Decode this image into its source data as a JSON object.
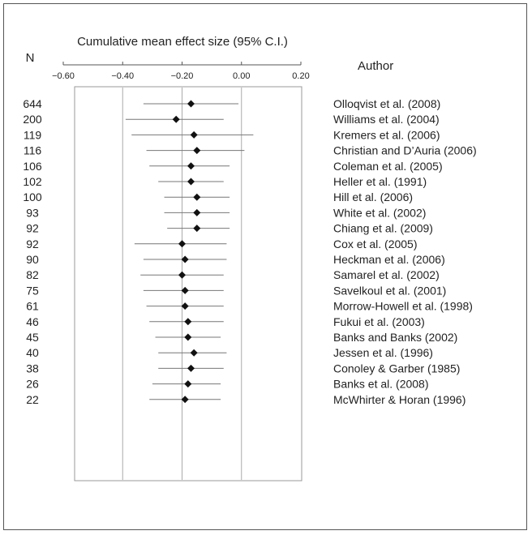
{
  "chart_data": {
    "type": "forest",
    "title": "Cumulative mean effect size (95% C.I.)",
    "n_header": "N",
    "author_header": "Author",
    "xlim": [
      -0.6,
      0.2
    ],
    "xticks": [
      -0.6,
      -0.4,
      -0.2,
      0.0,
      0.2
    ],
    "xtick_labels": [
      "−0.60",
      "−0.40",
      "−0.20",
      "0.00",
      "0.20"
    ],
    "gridlines_at": [
      -0.4,
      -0.2,
      0.0
    ],
    "rows": [
      {
        "n": "644",
        "author": "Olloqvist et al. (2008)",
        "mean": -0.17,
        "lower": -0.33,
        "upper": -0.01
      },
      {
        "n": "200",
        "author": "Williams et al. (2004)",
        "mean": -0.22,
        "lower": -0.39,
        "upper": -0.06
      },
      {
        "n": "119",
        "author": "Kremers et al. (2006)",
        "mean": -0.16,
        "lower": -0.37,
        "upper": 0.04
      },
      {
        "n": "116",
        "author": "Christian and D’Auria (2006)",
        "mean": -0.15,
        "lower": -0.32,
        "upper": 0.01
      },
      {
        "n": "106",
        "author": "Coleman et al. (2005)",
        "mean": -0.17,
        "lower": -0.31,
        "upper": -0.04
      },
      {
        "n": "102",
        "author": "Heller et al. (1991)",
        "mean": -0.17,
        "lower": -0.28,
        "upper": -0.06
      },
      {
        "n": "100",
        "author": "Hill et al. (2006)",
        "mean": -0.15,
        "lower": -0.26,
        "upper": -0.04
      },
      {
        "n": "93",
        "author": "White et al. (2002)",
        "mean": -0.15,
        "lower": -0.26,
        "upper": -0.04
      },
      {
        "n": "92",
        "author": "Chiang et al. (2009)",
        "mean": -0.15,
        "lower": -0.25,
        "upper": -0.04
      },
      {
        "n": "92",
        "author": "Cox et al. (2005)",
        "mean": -0.2,
        "lower": -0.36,
        "upper": -0.05
      },
      {
        "n": "90",
        "author": "Heckman et al. (2006)",
        "mean": -0.19,
        "lower": -0.33,
        "upper": -0.05
      },
      {
        "n": "82",
        "author": "Samarel et al. (2002)",
        "mean": -0.2,
        "lower": -0.34,
        "upper": -0.06
      },
      {
        "n": "75",
        "author": "Savelkoul et al. (2001)",
        "mean": -0.19,
        "lower": -0.33,
        "upper": -0.06
      },
      {
        "n": "61",
        "author": "Morrow-Howell et al. (1998)",
        "mean": -0.19,
        "lower": -0.32,
        "upper": -0.06
      },
      {
        "n": "46",
        "author": "Fukui et al. (2003)",
        "mean": -0.18,
        "lower": -0.31,
        "upper": -0.06
      },
      {
        "n": "45",
        "author": "Banks and Banks (2002)",
        "mean": -0.18,
        "lower": -0.29,
        "upper": -0.07
      },
      {
        "n": "40",
        "author": "Jessen et al. (1996)",
        "mean": -0.16,
        "lower": -0.28,
        "upper": -0.05
      },
      {
        "n": "38",
        "author": "Conoley & Garber (1985)",
        "mean": -0.17,
        "lower": -0.28,
        "upper": -0.06
      },
      {
        "n": "26",
        "author": "Banks et al. (2008)",
        "mean": -0.18,
        "lower": -0.3,
        "upper": -0.07
      },
      {
        "n": "22",
        "author": "McWhirter & Horan (1996)",
        "mean": -0.19,
        "lower": -0.31,
        "upper": -0.07
      }
    ]
  }
}
